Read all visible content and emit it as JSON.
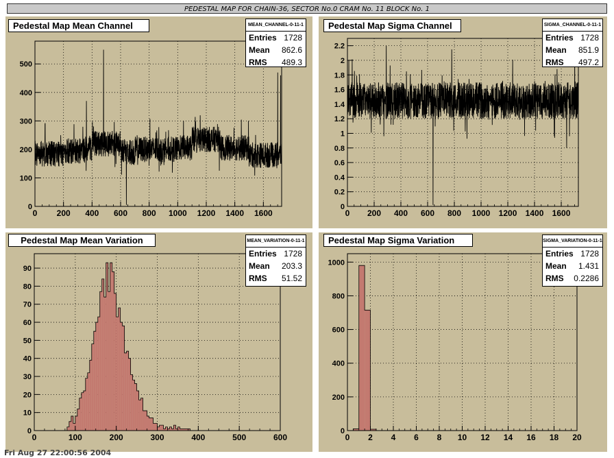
{
  "banner": "PEDESTAL MAP FOR CHAIN-36, SECTOR No.0 CRAM No. 11 BLOCK No. 1",
  "footer": "Fri Aug 27 22:00:56 2004",
  "colors": {
    "pad_bg": "#c8bd9b",
    "hist_fill": "#c37a70",
    "line": "#000000"
  },
  "chart_data": [
    {
      "type": "line",
      "title": "Pedestal Map Mean Channel",
      "stats": {
        "name": "MEAN_CHANNEL-0-11-1",
        "entries": "1728",
        "mean": "862.6",
        "rms": "489.3"
      },
      "xlim": [
        0,
        1728
      ],
      "ylim": [
        0,
        580
      ],
      "xticks": [
        0,
        200,
        400,
        600,
        800,
        1000,
        1200,
        1400,
        1600
      ],
      "yticks": [
        0,
        100,
        200,
        300,
        400,
        500
      ],
      "y_labels": [
        "0",
        "100",
        "200",
        "300",
        "400",
        "500"
      ],
      "approx_trace": {
        "n": 1728,
        "baseline": 195,
        "noise": 45,
        "spikes": [
          [
            1,
            230
          ],
          [
            70,
            290
          ],
          [
            180,
            250
          ],
          [
            360,
            370
          ],
          [
            480,
            550
          ],
          [
            640,
            5
          ],
          [
            1040,
            300
          ],
          [
            1700,
            470
          ],
          [
            1720,
            460
          ]
        ],
        "segments": [
          [
            0,
            200,
            185
          ],
          [
            200,
            350,
            195
          ],
          [
            350,
            400,
            205
          ],
          [
            400,
            600,
            220
          ],
          [
            600,
            700,
            190
          ],
          [
            700,
            1000,
            200
          ],
          [
            1000,
            1100,
            205
          ],
          [
            1100,
            1200,
            235
          ],
          [
            1200,
            1300,
            235
          ],
          [
            1300,
            1500,
            205
          ],
          [
            1500,
            1728,
            180
          ]
        ]
      }
    },
    {
      "type": "line",
      "title": "Pedestal Map Sigma Channel",
      "stats": {
        "name": "SIGMA_CHANNEL-0-11-1",
        "entries": "1728",
        "mean": "851.9",
        "rms": "497.2"
      },
      "xlim": [
        0,
        1728
      ],
      "ylim": [
        0,
        2.3
      ],
      "xticks": [
        0,
        200,
        400,
        600,
        800,
        1000,
        1200,
        1400,
        1600
      ],
      "yticks": [
        0,
        0.2,
        0.4,
        0.6,
        0.8,
        1,
        1.2,
        1.4,
        1.6,
        1.8,
        2,
        2.2
      ],
      "y_labels": [
        "0",
        "0.2",
        "0.4",
        "0.6",
        "0.8",
        "1",
        "1.2",
        "1.4",
        "1.6",
        "1.8",
        "2",
        "2.2"
      ],
      "approx_trace": {
        "n": 1728,
        "baseline": 1.45,
        "noise": 0.25,
        "spikes": [
          [
            10,
            2.0
          ],
          [
            290,
            2.2
          ],
          [
            640,
            0.02
          ],
          [
            780,
            2.15
          ],
          [
            1640,
            0.8
          ],
          [
            1700,
            2.1
          ]
        ],
        "segments": []
      }
    },
    {
      "type": "bar",
      "title": "Pedestal Map Mean Variation",
      "stats": {
        "name": "MEAN_VARIATION-0-11-1",
        "entries": "1728",
        "mean": "203.3",
        "rms": "51.52"
      },
      "xlim": [
        0,
        600
      ],
      "ylim": [
        0,
        98
      ],
      "xticks": [
        0,
        100,
        200,
        300,
        400,
        500,
        600
      ],
      "yticks": [
        0,
        10,
        20,
        30,
        40,
        50,
        60,
        70,
        80,
        90
      ],
      "y_labels": [
        "0",
        "10",
        "20",
        "30",
        "40",
        "50",
        "60",
        "70",
        "80",
        "90"
      ],
      "bin_width": 5,
      "bins_x": [
        80,
        85,
        90,
        95,
        100,
        105,
        110,
        115,
        120,
        125,
        130,
        135,
        140,
        145,
        150,
        155,
        160,
        165,
        170,
        175,
        180,
        185,
        190,
        195,
        200,
        205,
        210,
        215,
        220,
        225,
        230,
        235,
        240,
        245,
        250,
        255,
        260,
        265,
        270,
        275,
        280,
        285,
        290,
        295,
        300,
        305,
        310,
        315,
        320,
        325,
        330,
        335,
        340,
        345,
        350,
        355,
        360,
        365,
        370,
        375
      ],
      "values": [
        2,
        5,
        8,
        4,
        8,
        12,
        18,
        21,
        22,
        29,
        32,
        39,
        48,
        55,
        60,
        63,
        77,
        84,
        74,
        93,
        77,
        93,
        88,
        76,
        63,
        68,
        60,
        58,
        43,
        44,
        40,
        31,
        28,
        26,
        22,
        17,
        18,
        11,
        11,
        8,
        7,
        7,
        4,
        4,
        2,
        3,
        3,
        1,
        2,
        1,
        2,
        1,
        3,
        1,
        2,
        1,
        1,
        1,
        1,
        1
      ]
    },
    {
      "type": "bar",
      "title": "Pedestal Map Sigma Variation",
      "stats": {
        "name": "SIGMA_VARIATION-0-11-1",
        "entries": "1728",
        "mean": "1.431",
        "rms": "0.2286"
      },
      "xlim": [
        0,
        20
      ],
      "ylim": [
        0,
        1050
      ],
      "xticks": [
        0,
        2,
        4,
        6,
        8,
        10,
        12,
        14,
        16,
        18,
        20
      ],
      "yticks": [
        0,
        200,
        400,
        600,
        800,
        1000
      ],
      "y_labels": [
        "0",
        "200",
        "400",
        "600",
        "800",
        "1000"
      ],
      "bin_width": 0.5,
      "bins_x": [
        0.5,
        1.0,
        1.5,
        2.0
      ],
      "values": [
        10,
        980,
        715,
        8
      ]
    }
  ]
}
